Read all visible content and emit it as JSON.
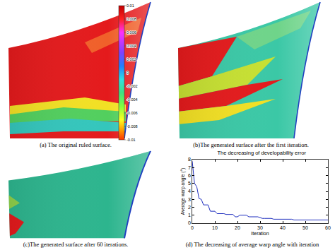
{
  "figure": {
    "panels": [
      {
        "caption": "(a) The original ruled surface."
      },
      {
        "caption": "(b)The generated surface after the first iteration."
      },
      {
        "caption": "(c)The generated surface after 60 iterations."
      },
      {
        "caption": "(d) The decreasing of average warp angle with iteration"
      }
    ],
    "colorbar": {
      "range": [
        -0.01,
        0.01
      ],
      "ticks": [
        0.01,
        0.008,
        0.006,
        0.004,
        0.002,
        0,
        -0.002,
        -0.004,
        -0.006,
        -0.008,
        -0.01
      ]
    }
  },
  "chart_data": {
    "type": "line",
    "title": "The decreasing of developability error",
    "x_label": "Iteration",
    "y_label": "Average warp angle (°)",
    "x": [
      0,
      1,
      2,
      3,
      4,
      5,
      6,
      7,
      8,
      9,
      10,
      11,
      12,
      13,
      14,
      15,
      16,
      17,
      18,
      19,
      20,
      21,
      22,
      23,
      24,
      25,
      26,
      27,
      28,
      29,
      30,
      31,
      32,
      33,
      34,
      35,
      36,
      37,
      38,
      39,
      40,
      41,
      42,
      43,
      44,
      45,
      46,
      47,
      48,
      49,
      50,
      51,
      52,
      53,
      54,
      55,
      56,
      57,
      58,
      59,
      60
    ],
    "values": [
      7.8,
      5.0,
      4.6,
      3.1,
      3.0,
      2.3,
      2.3,
      2.3,
      1.5,
      1.5,
      1.5,
      1.2,
      1.2,
      1.2,
      1.2,
      1.1,
      1.1,
      1.1,
      1.1,
      0.8,
      0.8,
      1.0,
      1.0,
      1.0,
      1.0,
      0.8,
      0.8,
      0.8,
      0.8,
      0.8,
      0.7,
      0.6,
      0.6,
      0.6,
      0.6,
      0.6,
      0.5,
      0.5,
      0.5,
      0.5,
      0.5,
      0.5,
      0.5,
      0.5,
      0.5,
      0.4,
      0.4,
      0.4,
      0.4,
      0.4,
      0.4,
      0.4,
      0.4,
      0.4,
      0.4,
      0.4,
      0.4,
      0.4,
      0.4,
      0.4,
      0.4
    ],
    "color": "#1f2fbf",
    "xlim": [
      0,
      60
    ],
    "ylim": [
      0,
      8
    ],
    "xticks": [
      0,
      10,
      20,
      30,
      40,
      50,
      60
    ],
    "yticks": [
      0,
      1,
      2,
      3,
      4,
      5,
      6,
      7,
      8
    ],
    "grid": false
  }
}
